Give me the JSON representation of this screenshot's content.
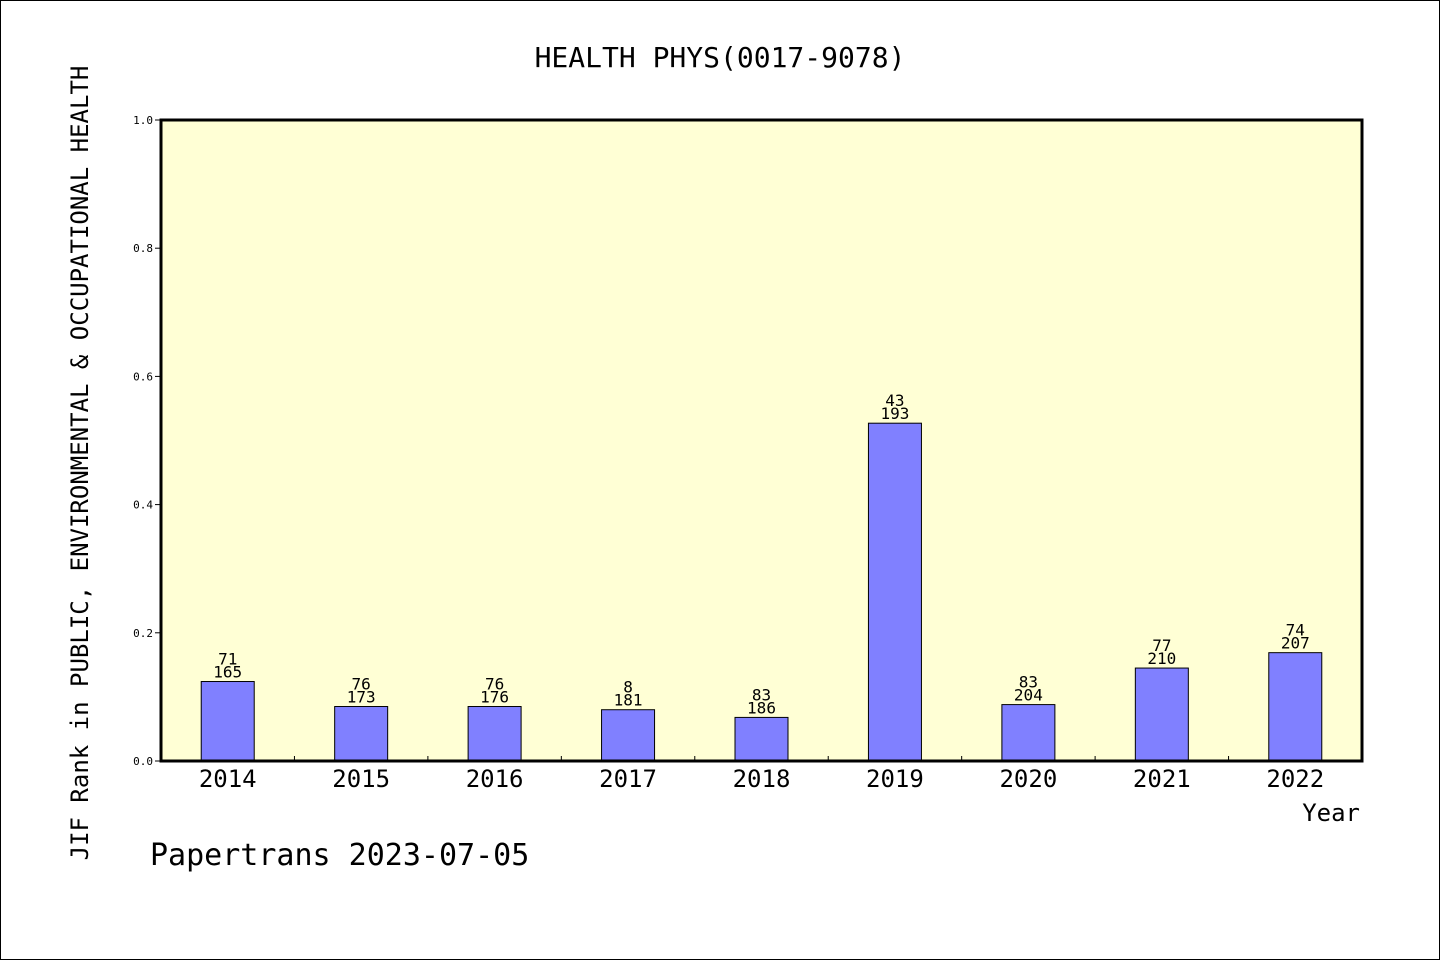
{
  "chart_data": {
    "type": "bar",
    "title": "HEALTH PHYS(0017-9078)",
    "ylabel": "JIF Rank in PUBLIC, ENVIRONMENTAL & OCCUPATIONAL HEALTH",
    "xlabel": "Year",
    "ylim": [
      0.0,
      1.0
    ],
    "yticks": [
      "0.0",
      "0.2",
      "0.4",
      "0.6",
      "0.8",
      "1.0"
    ],
    "categories": [
      "2014",
      "2015",
      "2016",
      "2017",
      "2018",
      "2019",
      "2020",
      "2021",
      "2022"
    ],
    "values": [
      0.124,
      0.085,
      0.085,
      0.08,
      0.068,
      0.527,
      0.088,
      0.145,
      0.169
    ],
    "rank_labels": [
      "71",
      "76",
      "76",
      "8",
      "83",
      "43",
      "83",
      "77",
      "74"
    ],
    "total_labels": [
      "165",
      "173",
      "176",
      "181",
      "186",
      "193",
      "204",
      "210",
      "207"
    ],
    "plot_background": "#ffffd5",
    "bar_color": "#8080ff",
    "grid": false
  },
  "footer": "Papertrans 2023-07-05"
}
